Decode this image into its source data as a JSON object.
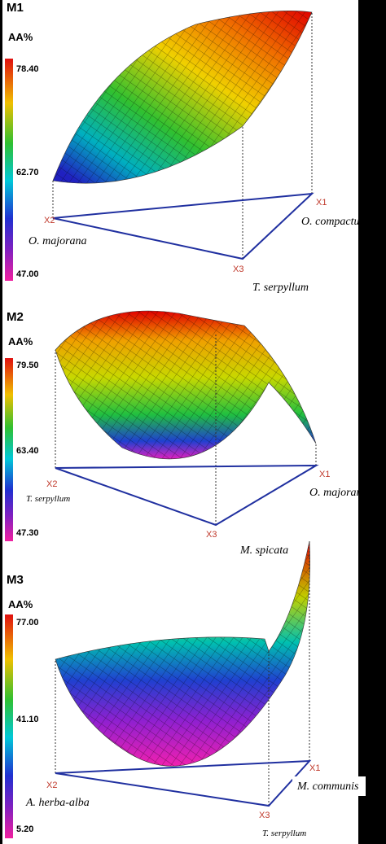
{
  "panels": [
    {
      "label": "M1",
      "axis_title": "AA%",
      "scale_ticks": [
        "78.40",
        "62.70",
        "47.00"
      ],
      "vertices": [
        "X1",
        "X2",
        "X3"
      ],
      "components": [
        "O. compactum",
        "O. majorana",
        "T. serpyllum"
      ]
    },
    {
      "label": "M2",
      "axis_title": "AA%",
      "scale_ticks": [
        "79.50",
        "63.40",
        "47.30"
      ],
      "vertices": [
        "X1",
        "X2",
        "X3"
      ],
      "components": [
        "O. majorana",
        "T. serpyllum",
        "M. spicata"
      ]
    },
    {
      "label": "M3",
      "axis_title": "AA%",
      "scale_ticks": [
        "77.00",
        "41.10",
        "5.20"
      ],
      "vertices": [
        "X1",
        "X2",
        "X3"
      ],
      "components": [
        "M. communis",
        "A. herba-alba",
        "T. serpyllum"
      ]
    }
  ]
}
